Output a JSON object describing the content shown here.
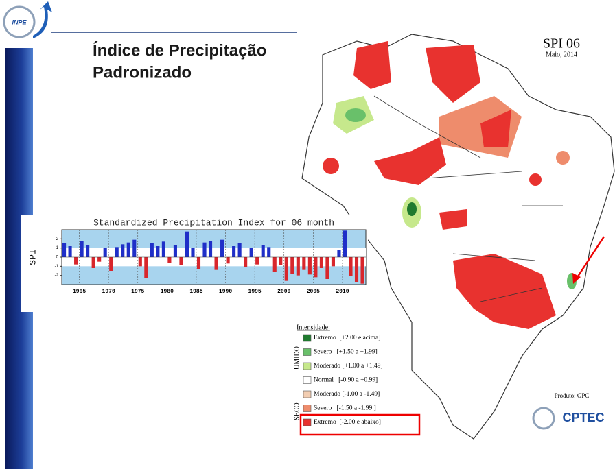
{
  "header": {
    "logo": "INPE",
    "title_line1": "Índice de Precipitação",
    "title_line2": "Padronizado"
  },
  "map": {
    "title": "SPI 06",
    "date": "Maio, 2014"
  },
  "legend": {
    "title": "Intensidade:",
    "group_wet": "UMIDO",
    "group_dry": "SECO",
    "entries": [
      {
        "label": "Extremo  [+2.00 e acima]",
        "color": "#1f7a2e"
      },
      {
        "label": "Severo   [+1.50 a +1.99]",
        "color": "#69c06a"
      },
      {
        "label": "Moderado [+1.00 a +1.49]",
        "color": "#c6e88c"
      },
      {
        "label": "Normal   [-0.90 a +0.99]",
        "color": "#ffffff"
      },
      {
        "label": "Moderado [-1.00 a -1.49]",
        "color": "#f2cdb1"
      },
      {
        "label": "Severo   [-1.50 a -1.99 ]",
        "color": "#ee8c6c"
      },
      {
        "label": "Extremo  [-2.00 e abaixo]",
        "color": "#e8322f"
      }
    ]
  },
  "footer": {
    "product": "Produto: GPC",
    "logo": "CPTEC"
  },
  "chart_data": {
    "type": "bar",
    "title": "Standardized Precipitation Index for 06 month",
    "y_label": "SPI",
    "x": [
      1962,
      1963,
      1964,
      1965,
      1966,
      1967,
      1968,
      1969,
      1970,
      1971,
      1972,
      1973,
      1974,
      1975,
      1976,
      1977,
      1978,
      1979,
      1980,
      1981,
      1982,
      1983,
      1984,
      1985,
      1986,
      1987,
      1988,
      1989,
      1990,
      1991,
      1992,
      1993,
      1994,
      1995,
      1996,
      1997,
      1998,
      1999,
      2000,
      2001,
      2002,
      2003,
      2004,
      2005,
      2006,
      2007,
      2008,
      2009,
      2010,
      2011,
      2012,
      2013
    ],
    "values": [
      1.5,
      1.2,
      -0.8,
      1.8,
      1.3,
      -1.2,
      -0.5,
      1.0,
      -1.5,
      1.1,
      1.4,
      1.6,
      1.9,
      -1.0,
      -2.3,
      1.5,
      1.2,
      1.7,
      -0.6,
      1.3,
      -0.9,
      2.8,
      1.0,
      -1.3,
      1.6,
      1.8,
      -1.4,
      1.9,
      -0.7,
      1.2,
      1.5,
      -1.1,
      1.0,
      -0.8,
      1.3,
      1.1,
      -1.6,
      -0.9,
      -2.6,
      -1.8,
      -2.0,
      -1.4,
      -1.9,
      -2.2,
      -1.2,
      -2.4,
      -1.0,
      0.8,
      2.9,
      -2.1,
      -2.7,
      -2.9
    ],
    "pos_color": "#1f2fc8",
    "neg_color": "#d8262c",
    "xlim": [
      1962,
      2014
    ],
    "xticks": [
      1965,
      1970,
      1975,
      1980,
      1985,
      1990,
      1995,
      2000,
      2005,
      2010
    ],
    "ylim": [
      -3,
      3
    ],
    "yticks": [
      -2,
      -1,
      0,
      1,
      2
    ]
  }
}
